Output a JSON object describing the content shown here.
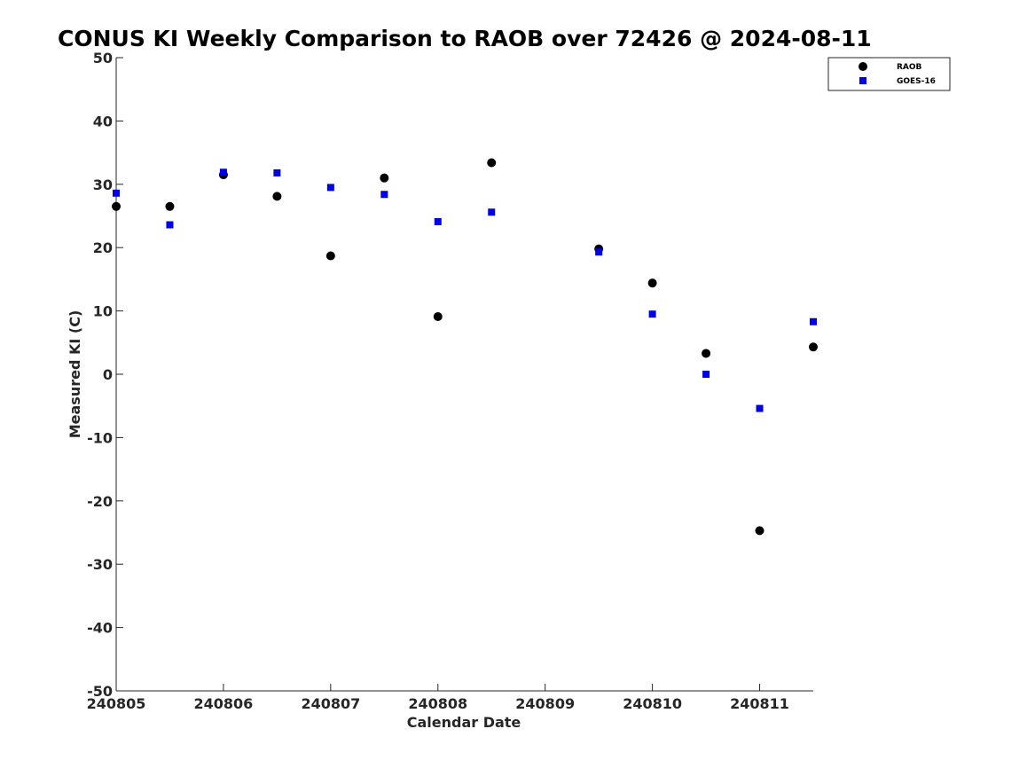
{
  "chart_data": {
    "type": "scatter",
    "title": "CONUS KI Weekly Comparison to RAOB over 72426 @ 2024-08-11",
    "xlabel": "Calendar Date",
    "ylabel": "Measured KI (C)",
    "xlim": [
      240805,
      240811.5
    ],
    "ylim": [
      -50,
      50
    ],
    "x_ticks": [
      "240805",
      "240806",
      "240807",
      "240808",
      "240809",
      "240810",
      "240811"
    ],
    "y_ticks": [
      "50",
      "40",
      "30",
      "20",
      "10",
      "0",
      "-10",
      "-20",
      "-30",
      "-40",
      "-50"
    ],
    "grid": false,
    "legend_position": "top-right",
    "series": [
      {
        "name": "RAOB",
        "marker": "circle",
        "color": "#000000",
        "points": [
          {
            "x": 240805.0,
            "y": 26.5
          },
          {
            "x": 240805.5,
            "y": 26.5
          },
          {
            "x": 240806.0,
            "y": 31.5
          },
          {
            "x": 240806.5,
            "y": 28.1
          },
          {
            "x": 240807.0,
            "y": 18.7
          },
          {
            "x": 240807.5,
            "y": 31.0
          },
          {
            "x": 240808.0,
            "y": 9.1
          },
          {
            "x": 240808.5,
            "y": 33.4
          },
          {
            "x": 240809.5,
            "y": 19.8
          },
          {
            "x": 240810.0,
            "y": 14.4
          },
          {
            "x": 240810.5,
            "y": 3.3
          },
          {
            "x": 240811.0,
            "y": -24.7
          },
          {
            "x": 240811.5,
            "y": 4.3
          }
        ]
      },
      {
        "name": "GOES-16",
        "marker": "square",
        "color": "#0000e6",
        "points": [
          {
            "x": 240805.0,
            "y": 28.6
          },
          {
            "x": 240805.5,
            "y": 23.6
          },
          {
            "x": 240806.0,
            "y": 31.9
          },
          {
            "x": 240806.5,
            "y": 31.8
          },
          {
            "x": 240807.0,
            "y": 29.5
          },
          {
            "x": 240807.5,
            "y": 28.4
          },
          {
            "x": 240808.0,
            "y": 24.1
          },
          {
            "x": 240808.5,
            "y": 25.6
          },
          {
            "x": 240809.5,
            "y": 19.3
          },
          {
            "x": 240810.0,
            "y": 9.5
          },
          {
            "x": 240810.5,
            "y": 0.0
          },
          {
            "x": 240811.0,
            "y": -5.4
          },
          {
            "x": 240811.5,
            "y": 8.3
          }
        ]
      }
    ]
  }
}
